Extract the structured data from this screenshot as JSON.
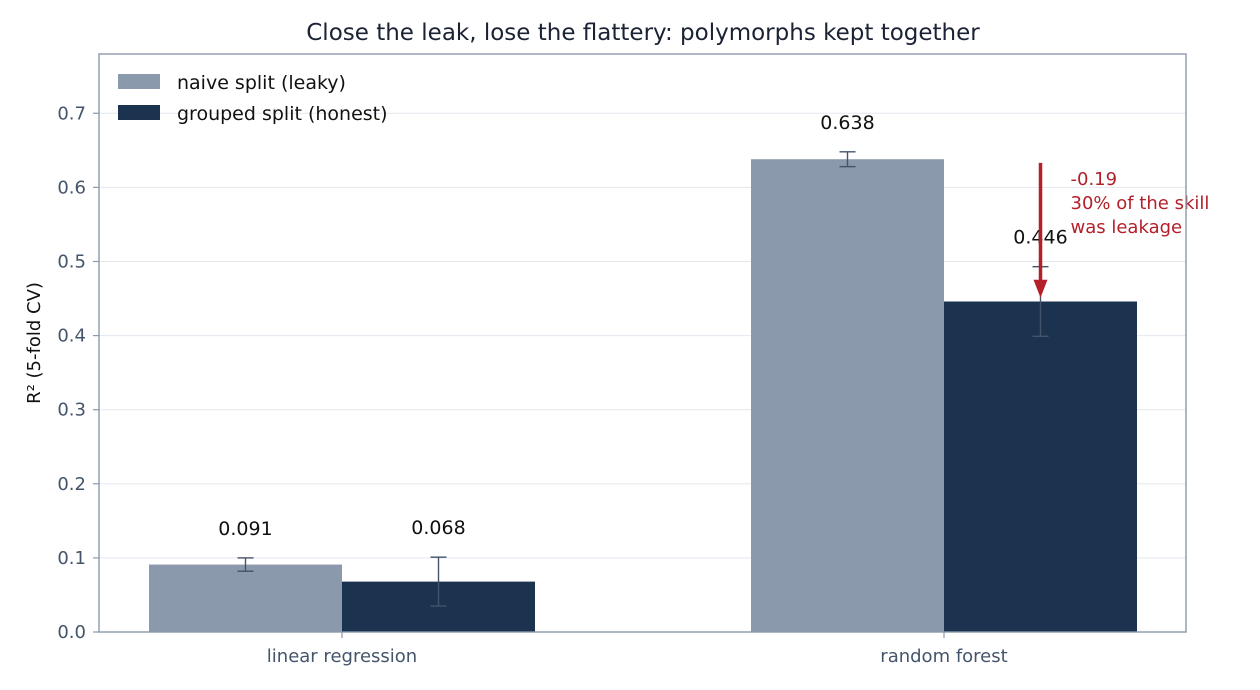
{
  "chart_data": {
    "type": "bar",
    "title": "Close the leak, lose the flattery: polymorphs kept together",
    "xlabel": "",
    "ylabel": "R² (5-fold CV)",
    "categories": [
      "linear regression",
      "random forest"
    ],
    "ylim": [
      0,
      0.78
    ],
    "yticks": [
      0.0,
      0.1,
      0.2,
      0.3,
      0.4,
      0.5,
      0.6,
      0.7
    ],
    "ytick_labels": [
      "0.0",
      "0.1",
      "0.2",
      "0.3",
      "0.4",
      "0.5",
      "0.6",
      "0.7"
    ],
    "grid": "horizontal",
    "legend_position": "top-left",
    "series": [
      {
        "name": "naive split (leaky)",
        "color": "#8a99ab",
        "values": [
          0.091,
          0.638
        ],
        "errors": [
          0.009,
          0.01
        ],
        "labels": [
          "0.091",
          "0.638"
        ]
      },
      {
        "name": "grouped split (honest)",
        "color": "#1b334f",
        "values": [
          0.068,
          0.446
        ],
        "errors": [
          0.033,
          0.047
        ],
        "labels": [
          "0.068",
          "0.446"
        ]
      }
    ],
    "annotation": {
      "category": "random forest",
      "from": 0.633,
      "to": 0.451,
      "color": "#b3202a",
      "lines": [
        "-0.19",
        "30% of the skill",
        "was leakage"
      ]
    }
  }
}
